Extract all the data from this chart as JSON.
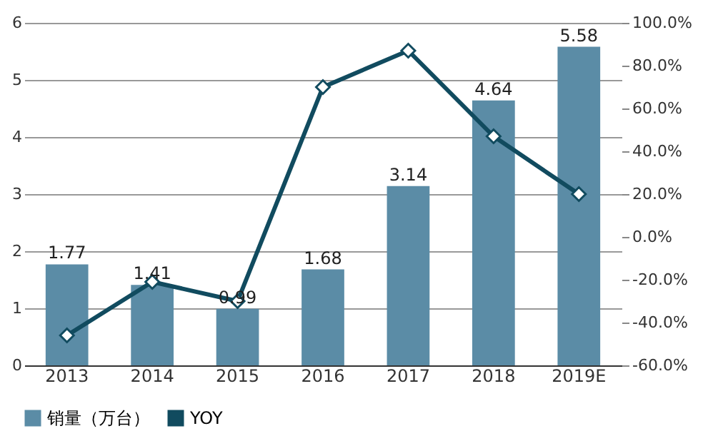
{
  "chart_data": {
    "type": "bar",
    "categories": [
      "2013",
      "2014",
      "2015",
      "2016",
      "2017",
      "2018",
      "2019E"
    ],
    "series": [
      {
        "name": "销量（万台）",
        "color": "#5b8ca6",
        "values": [
          1.77,
          1.41,
          0.99,
          1.68,
          3.14,
          4.64,
          5.58
        ],
        "value_labels": [
          "1.77",
          "1.41",
          "0.99",
          "1.68",
          "3.14",
          "4.64",
          "5.58"
        ]
      },
      {
        "name": "YOY",
        "type": "line",
        "axis": "y2",
        "color": "#114b5f",
        "values": [
          -46,
          -21,
          -30,
          70,
          87,
          47,
          20
        ]
      }
    ],
    "ylim": [
      0,
      6
    ],
    "yticks": [
      0,
      1,
      2,
      3,
      4,
      5,
      6
    ],
    "y2lim": [
      -60,
      100
    ],
    "y2ticks": [
      {
        "value": -60,
        "label": "-60.0%"
      },
      {
        "value": -40,
        "label": "-40.0%"
      },
      {
        "value": -20,
        "label": "-20.0%"
      },
      {
        "value": 0,
        "label": "0.0%"
      },
      {
        "value": 20,
        "label": "20.0%"
      },
      {
        "value": 40,
        "label": "40.0%"
      },
      {
        "value": 60,
        "label": "60.0%"
      },
      {
        "value": 80,
        "label": "80.0%"
      },
      {
        "value": 100,
        "label": "100.0%"
      }
    ],
    "grid": "y",
    "legend": "bottom",
    "marker": "diamond",
    "line_style": "solid"
  }
}
